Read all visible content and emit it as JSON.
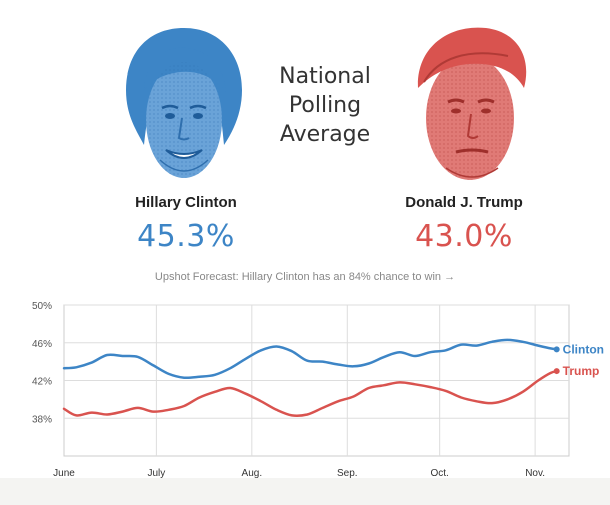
{
  "header": {
    "title_lines": [
      "National",
      "Polling",
      "Average"
    ]
  },
  "candidates": [
    {
      "name": "Hillary Clinton",
      "pct": "45.3%",
      "color": "#3d85c6",
      "icon": "clinton-portrait"
    },
    {
      "name": "Donald J. Trump",
      "pct": "43.0%",
      "color": "#d9534f",
      "icon": "trump-portrait"
    }
  ],
  "forecast": {
    "text": "Upshot Forecast: Hillary Clinton has an 84% chance to win",
    "arrow": "→"
  },
  "chart_data": {
    "type": "line",
    "x_unit": "date (2016)",
    "x_ticks": [
      "June",
      "July",
      "Aug.",
      "Sep.",
      "Oct.",
      "Nov."
    ],
    "y_ticks": [
      "50%",
      "46%",
      "42%",
      "38%"
    ],
    "ylim": [
      34,
      50
    ],
    "grid": true,
    "series": [
      {
        "name": "Clinton",
        "color": "#3d85c6",
        "x": [
          "2016-06-01",
          "2016-06-05",
          "2016-06-10",
          "2016-06-15",
          "2016-06-20",
          "2016-06-25",
          "2016-06-30",
          "2016-07-05",
          "2016-07-10",
          "2016-07-15",
          "2016-07-20",
          "2016-07-25",
          "2016-07-30",
          "2016-08-04",
          "2016-08-09",
          "2016-08-14",
          "2016-08-19",
          "2016-08-24",
          "2016-08-29",
          "2016-09-03",
          "2016-09-08",
          "2016-09-13",
          "2016-09-18",
          "2016-09-23",
          "2016-09-28",
          "2016-10-03",
          "2016-10-08",
          "2016-10-13",
          "2016-10-18",
          "2016-10-23",
          "2016-10-28",
          "2016-11-02",
          "2016-11-06",
          "2016-11-08"
        ],
        "values": [
          43.3,
          43.4,
          43.9,
          44.7,
          44.6,
          44.5,
          43.6,
          42.7,
          42.3,
          42.4,
          42.6,
          43.3,
          44.3,
          45.2,
          45.6,
          45.1,
          44.1,
          44.0,
          43.7,
          43.5,
          43.8,
          44.5,
          45.0,
          44.6,
          45.0,
          45.2,
          45.8,
          45.7,
          46.1,
          46.3,
          46.1,
          45.7,
          45.4,
          45.3
        ]
      },
      {
        "name": "Trump",
        "color": "#d9534f",
        "x": [
          "2016-06-01",
          "2016-06-05",
          "2016-06-10",
          "2016-06-15",
          "2016-06-20",
          "2016-06-25",
          "2016-06-30",
          "2016-07-05",
          "2016-07-10",
          "2016-07-15",
          "2016-07-20",
          "2016-07-25",
          "2016-07-30",
          "2016-08-04",
          "2016-08-09",
          "2016-08-14",
          "2016-08-19",
          "2016-08-24",
          "2016-08-29",
          "2016-09-03",
          "2016-09-08",
          "2016-09-13",
          "2016-09-18",
          "2016-09-23",
          "2016-09-28",
          "2016-10-03",
          "2016-10-08",
          "2016-10-13",
          "2016-10-18",
          "2016-10-23",
          "2016-10-28",
          "2016-11-02",
          "2016-11-06",
          "2016-11-08"
        ],
        "values": [
          39.0,
          38.3,
          38.6,
          38.4,
          38.7,
          39.1,
          38.7,
          38.9,
          39.3,
          40.2,
          40.8,
          41.2,
          40.6,
          39.8,
          38.9,
          38.3,
          38.4,
          39.1,
          39.8,
          40.3,
          41.2,
          41.5,
          41.8,
          41.6,
          41.3,
          40.9,
          40.2,
          39.8,
          39.6,
          40.0,
          40.8,
          42.0,
          42.8,
          43.0
        ]
      }
    ]
  }
}
